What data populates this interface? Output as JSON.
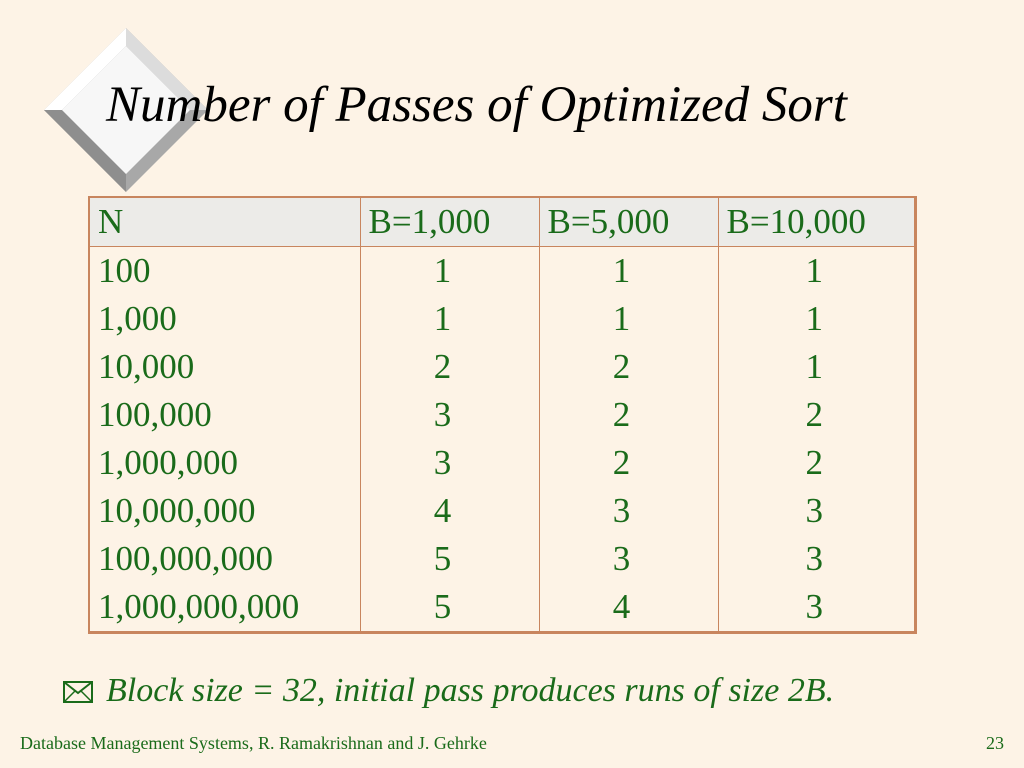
{
  "slide": {
    "title": "Number of Passes of Optimized Sort",
    "footnote_icon": "envelope-icon",
    "footnote": "Block size = 32,  initial pass produces runs of size 2B.",
    "footer_left": "Database Management Systems, R. Ramakrishnan and J. Gehrke",
    "page_number": "23"
  },
  "table": {
    "headers": [
      "N",
      "B=1,000",
      "B=5,000",
      "B=10,000"
    ],
    "rows": [
      [
        "100",
        "1",
        "1",
        "1"
      ],
      [
        "1,000",
        "1",
        "1",
        "1"
      ],
      [
        "10,000",
        "2",
        "2",
        "1"
      ],
      [
        "100,000",
        "3",
        "2",
        "2"
      ],
      [
        "1,000,000",
        "3",
        "2",
        "2"
      ],
      [
        "10,000,000",
        "4",
        "3",
        "3"
      ],
      [
        "100,000,000",
        "5",
        "3",
        "3"
      ],
      [
        "1,000,000,000",
        "5",
        "4",
        "3"
      ]
    ]
  },
  "colors": {
    "background": "#fdf3e6",
    "text_green": "#1a6b1a",
    "table_border": "#c8855e",
    "header_fill": "#ecebe8"
  }
}
